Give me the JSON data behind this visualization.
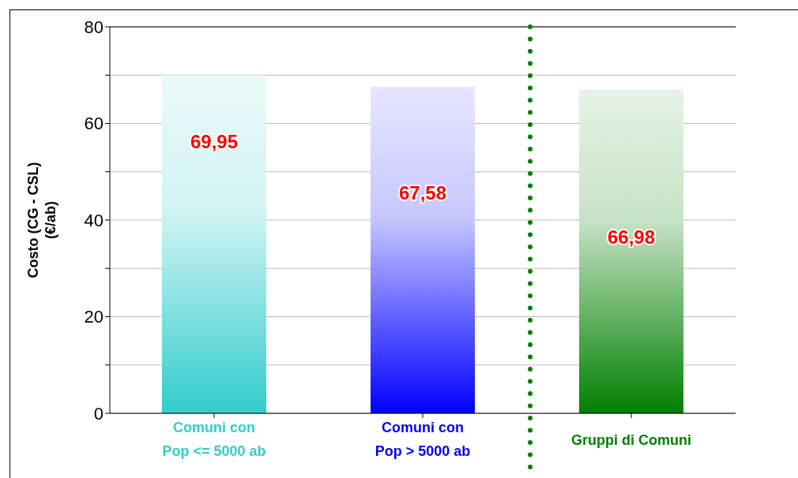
{
  "chart_data": {
    "type": "bar",
    "ylabel": "Costo (CG - CSL)\n(€/ab)",
    "categories": [
      "Comuni con\nPop <= 5000 ab",
      "Comuni con\nPop > 5000 ab",
      "Gruppi di Comuni"
    ],
    "values": [
      69.95,
      67.58,
      66.98
    ],
    "value_labels": [
      "69,95",
      "67,58",
      "66,98"
    ],
    "colors": [
      "#33cccc",
      "#0000ff",
      "#008000"
    ],
    "ylim": [
      0,
      80
    ],
    "yticks": [
      0,
      {
        "value": 10,
        "label": null
      },
      20,
      {
        "value": 30,
        "label": null
      },
      40,
      {
        "value": 50,
        "label": null
      },
      60,
      {
        "value": 70,
        "label": null
      },
      80
    ],
    "grid": "y"
  }
}
